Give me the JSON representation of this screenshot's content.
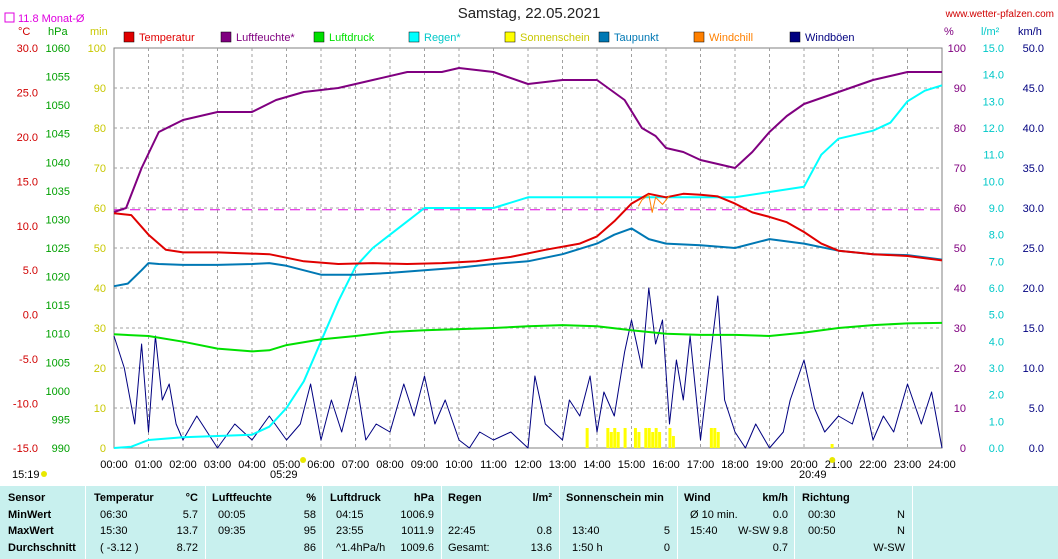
{
  "header": {
    "title": "Samstag, 22.05.2021",
    "website": "www.wetter-pfalzen.com",
    "monthly_avg": "11.8 Monat-Ø"
  },
  "axis_units": {
    "left1": "°C",
    "left2": "hPa",
    "left3": "min",
    "right1": "%",
    "right2": "l/m²",
    "right3": "km/h"
  },
  "axis_ticks": {
    "temp": [
      "30.0",
      "25.0",
      "20.0",
      "15.0",
      "10.0",
      "5.0",
      "0.0",
      "-5.0",
      "-10.0",
      "-15.0"
    ],
    "pressure": [
      "1060",
      "1055",
      "1050",
      "1045",
      "1040",
      "1035",
      "1030",
      "1025",
      "1020",
      "1015",
      "1010",
      "1005",
      "1000",
      "995",
      "990"
    ],
    "minutes": [
      "100",
      "90",
      "80",
      "70",
      "60",
      "50",
      "40",
      "30",
      "20",
      "10",
      "0"
    ],
    "humidity": [
      "100",
      "90",
      "80",
      "70",
      "60",
      "50",
      "40",
      "30",
      "20",
      "10",
      "0"
    ],
    "rain": [
      "15.0",
      "14.0",
      "13.0",
      "12.0",
      "11.0",
      "10.0",
      "9.0",
      "8.0",
      "7.0",
      "6.0",
      "5.0",
      "4.0",
      "3.0",
      "2.0",
      "1.0",
      "0.0"
    ],
    "wind": [
      "50.0",
      "45.0",
      "40.0",
      "35.0",
      "30.0",
      "25.0",
      "20.0",
      "15.0",
      "10.0",
      "5.0",
      "0.0"
    ],
    "time": [
      "00:00",
      "01:00",
      "02:00",
      "03:00",
      "04:00",
      "05:00",
      "06:00",
      "07:00",
      "08:00",
      "09:00",
      "10:00",
      "11:00",
      "12:00",
      "13:00",
      "14:00",
      "15:00",
      "16:00",
      "17:00",
      "18:00",
      "19:00",
      "20:00",
      "21:00",
      "22:00",
      "23:00",
      "24:00"
    ]
  },
  "sun": {
    "now": "15:19",
    "sunrise": "05:29",
    "sunset": "20:49"
  },
  "colors": {
    "temperature": "#e00000",
    "humidity": "#800080",
    "pressure": "#00e000",
    "rain": "#00ffff",
    "sunshine": "#ffff00",
    "dewpoint": "#0078b4",
    "windchill": "#ff8000",
    "gust": "#000080",
    "grid": "#a0a0a0",
    "table": "#c8f0ee"
  },
  "chart_data": {
    "type": "line",
    "title": "Samstag, 22.05.2021",
    "x_unit": "hours",
    "x_range": [
      0,
      24
    ],
    "legend": [
      "Temperatur",
      "Luftfeuchte*",
      "Luftdruck",
      "Regen*",
      "Sonnenschein",
      "Taupunkt",
      "Windchill",
      "Windböen"
    ],
    "series": [
      {
        "name": "Temperatur",
        "unit": "°C",
        "x": [
          0,
          0.5,
          1,
          1.5,
          2,
          3,
          4.5,
          5.5,
          6.5,
          7.5,
          8.5,
          9.5,
          10.5,
          11.5,
          12.5,
          13.5,
          14,
          14.5,
          15,
          15.5,
          16,
          16.5,
          17,
          17.5,
          18,
          18.5,
          19,
          19.5,
          20,
          20.5,
          21,
          22,
          23,
          24
        ],
        "values": [
          11.4,
          11.2,
          9.0,
          7.3,
          7.0,
          7.0,
          6.8,
          6.0,
          5.7,
          5.8,
          5.7,
          5.8,
          6.0,
          6.5,
          7.3,
          8.0,
          8.8,
          10.5,
          12.5,
          13.6,
          13.2,
          13.6,
          13.5,
          13.3,
          12.5,
          11.5,
          11.0,
          10.4,
          9.3,
          8.0,
          7.2,
          6.8,
          6.6,
          6.1
        ]
      },
      {
        "name": "Luftfeuchte*",
        "unit": "%",
        "x": [
          0,
          0.35,
          0.8,
          1.3,
          2,
          3,
          4,
          4.7,
          5.5,
          6.5,
          7.5,
          8.5,
          9.5,
          10,
          11,
          12,
          13,
          14,
          14.8,
          15.3,
          15.7,
          16,
          16.5,
          17,
          17.5,
          18,
          18.5,
          19,
          19.5,
          20,
          21,
          22,
          23,
          24
        ],
        "values": [
          59,
          60,
          70,
          79,
          82,
          84,
          84,
          87,
          89,
          90,
          92,
          94,
          94,
          95,
          94,
          91,
          92,
          92,
          87,
          80,
          78,
          75,
          74,
          72,
          71,
          70,
          74,
          79,
          83,
          86,
          89,
          92,
          94,
          94
        ]
      },
      {
        "name": "Luftdruck",
        "unit": "hPa",
        "x": [
          0,
          1,
          2,
          3,
          4,
          4.5,
          5,
          6,
          7,
          8,
          9,
          10,
          11,
          12,
          13,
          14,
          15,
          16,
          17,
          18,
          19,
          20,
          21,
          22,
          23,
          24
        ],
        "values": [
          1009.9,
          1009.6,
          1008.6,
          1007.4,
          1006.9,
          1007.1,
          1008.0,
          1009.0,
          1009.6,
          1010.3,
          1010.6,
          1010.8,
          1011.0,
          1011.3,
          1011.5,
          1011.3,
          1010.6,
          1010.0,
          1009.8,
          1009.8,
          1009.6,
          1010.2,
          1011.0,
          1011.5,
          1011.8,
          1011.9
        ]
      },
      {
        "name": "Regen*",
        "unit": "l/m²",
        "x": [
          0,
          0.5,
          1,
          2,
          3,
          4,
          4.5,
          5,
          5.5,
          6,
          6.5,
          7,
          7.5,
          8,
          8.5,
          9,
          10,
          11,
          12,
          13,
          14,
          15,
          16,
          17,
          18,
          19,
          20,
          20.5,
          21,
          22,
          22.5,
          23,
          23.5,
          24
        ],
        "values": [
          0,
          0.05,
          0.3,
          0.4,
          0.45,
          0.5,
          0.8,
          1.5,
          2.5,
          4.0,
          5.5,
          6.8,
          7.5,
          8.0,
          8.5,
          9.0,
          9.0,
          9.0,
          9.4,
          9.4,
          9.4,
          9.4,
          9.4,
          9.4,
          9.4,
          9.6,
          9.8,
          11.0,
          11.6,
          11.9,
          12.2,
          13.0,
          13.4,
          13.6
        ]
      },
      {
        "name": "Taupunkt",
        "unit": "°C",
        "x": [
          0,
          0.4,
          0.8,
          1,
          1.3,
          2,
          3,
          4,
          4.5,
          5,
          6,
          7,
          8,
          9,
          10,
          11,
          12,
          13,
          14,
          14.5,
          15,
          15.5,
          16,
          17,
          18,
          19,
          20,
          21,
          22,
          23,
          24
        ],
        "values": [
          3.2,
          3.5,
          5.0,
          5.8,
          5.7,
          5.6,
          5.6,
          5.7,
          5.8,
          5.5,
          4.5,
          4.5,
          4.7,
          5.0,
          5.3,
          5.7,
          6.0,
          6.8,
          8.0,
          9.0,
          9.7,
          8.5,
          8.0,
          7.8,
          7.5,
          8.5,
          8.0,
          7.2,
          6.8,
          6.7,
          6.2
        ]
      },
      {
        "name": "Windchill",
        "unit": "°C",
        "x": [
          15.2,
          15.3,
          15.5,
          15.6,
          15.7,
          15.9,
          16.1
        ],
        "values": [
          12.2,
          12.9,
          13.5,
          11.5,
          13.2,
          12.4,
          13.4
        ]
      },
      {
        "name": "Windböen",
        "unit": "km/h",
        "x": [
          0,
          0.3,
          0.6,
          0.8,
          1,
          1.2,
          1.4,
          1.6,
          1.8,
          2,
          2.4,
          3,
          3.5,
          4,
          4.5,
          5,
          5.4,
          5.7,
          6,
          6.3,
          6.6,
          7,
          7.3,
          7.6,
          8,
          8.4,
          8.7,
          9,
          9.3,
          9.6,
          10,
          10.3,
          10.6,
          11,
          11.5,
          12,
          12.2,
          12.5,
          13,
          13.2,
          13.5,
          13.8,
          14,
          14.2,
          14.5,
          14.8,
          15,
          15.3,
          15.5,
          15.7,
          15.9,
          16.1,
          16.3,
          16.5,
          16.7,
          17,
          17.3,
          17.5,
          17.7,
          18,
          18.3,
          18.6,
          19,
          19.4,
          19.6,
          20,
          20.3,
          20.6,
          21,
          21.4,
          21.7,
          22,
          22.3,
          22.6,
          23,
          23.4,
          23.7,
          24
        ],
        "values": [
          14,
          10,
          3,
          13,
          2,
          14,
          6,
          8,
          3,
          1,
          4,
          0,
          3,
          1,
          4,
          1,
          3,
          8,
          1,
          6,
          2,
          9,
          1,
          3,
          2,
          8,
          4,
          9,
          3,
          6,
          1,
          0,
          2,
          1,
          2,
          0,
          9,
          3,
          1,
          6,
          4,
          9,
          2,
          7,
          4,
          12,
          16,
          10,
          20,
          13,
          16,
          3,
          11,
          6,
          14,
          1,
          12,
          19,
          6,
          2,
          0,
          3,
          0,
          2,
          6,
          11,
          5,
          2,
          4,
          3,
          7,
          1,
          4,
          2,
          8,
          3,
          7,
          0
        ]
      },
      {
        "name": "Sonnenschein",
        "unit": "min",
        "x": [
          13.7,
          14.3,
          14.4,
          14.5,
          14.6,
          14.8,
          15.1,
          15.2,
          15.4,
          15.5,
          15.6,
          15.7,
          15.8,
          16.1,
          16.2,
          17.3,
          17.4,
          17.5,
          20.8
        ],
        "values": [
          5,
          5,
          4,
          5,
          4,
          5,
          5,
          4,
          5,
          5,
          4,
          5,
          4,
          5,
          3,
          5,
          5,
          4,
          1
        ]
      }
    ],
    "reference": {
      "name": "11.8 Monat-Ø",
      "value": 11.8,
      "unit": "°C",
      "style": "dashed"
    }
  },
  "summary": {
    "headers": {
      "sensor": "Sensor",
      "temp": "Temperatur",
      "temp_unit": "°C",
      "hum": "Luftfeuchte",
      "hum_unit": "%",
      "press": "Luftdruck",
      "press_unit": "hPa",
      "rain": "Regen",
      "rain_unit": "l/m²",
      "sun": "Sonnenschein min",
      "wind": "Wind",
      "wind_unit": "km/h",
      "dir": "Richtung"
    },
    "rows": [
      {
        "label": "MinWert",
        "temp_time": "06:30",
        "temp_val": "5.7",
        "hum_time": "00:05",
        "hum_val": "58",
        "press_time": "04:15",
        "press_val": "1006.9",
        "rain_time": "",
        "rain_val": "",
        "sun_time": "",
        "sun_val": "",
        "wind_time": "Ø 10 min.",
        "wind_val": "0.0",
        "dir_time": "00:30",
        "dir_val": "N"
      },
      {
        "label": "MaxWert",
        "temp_time": "15:30",
        "temp_val": "13.7",
        "hum_time": "09:35",
        "hum_val": "95",
        "press_time": "23:55",
        "press_val": "1011.9",
        "rain_time": "22:45",
        "rain_val": "0.8",
        "sun_time": "13:40",
        "sun_val": "5",
        "wind_time": "15:40",
        "wind_val": "W-SW 9.8",
        "dir_time": "00:50",
        "dir_val": "N"
      },
      {
        "label": "Durchschnitt",
        "temp_time": "( -3.12 )",
        "temp_val": "8.72",
        "hum_time": "",
        "hum_val": "86",
        "press_time": "^1.4hPa/h",
        "press_val": "1009.6",
        "rain_time": "Gesamt:",
        "rain_val": "13.6",
        "sun_time": "1:50 h",
        "sun_val": "0",
        "wind_time": "",
        "wind_val": "0.7",
        "dir_time": "",
        "dir_val": "W-SW"
      }
    ]
  }
}
